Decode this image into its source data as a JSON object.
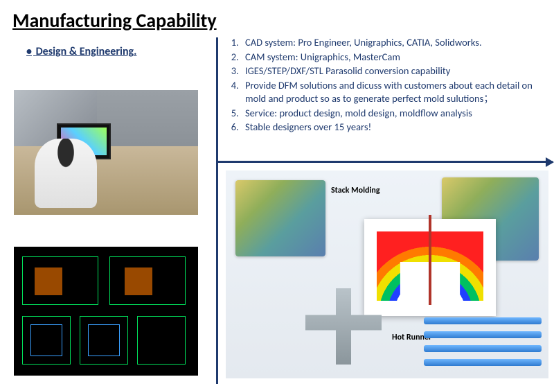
{
  "title": "Manufacturing Capability",
  "subtitle": "Design & Engineering",
  "subtitle_trailing": ".",
  "text_color": "#1f3a6e",
  "accent_line_color": "#1f3a6e",
  "capabilities": [
    "CAD system: Pro Engineer, Unigraphics, CATIA, Solidworks.",
    "CAM system: Unigraphics, MasterCam",
    "IGES/STEP/DXF/STL Parasolid conversion capability",
    "Provide DFM solutions and dicuss with customers about each detail on mold and product so as to generate perfect mold sulutions；",
    "Service: product design, mold design, moldflow analysis",
    "Stable designers over 15 years!"
  ],
  "gallery_labels": {
    "stack": "Stack Molding",
    "hot": "Hot Runner"
  },
  "images": {
    "office_alt": "Engineer working at CAD workstation in office cubicles",
    "cad_alt": "2D CAD mold drawings on black background",
    "gallery_alt": "3D mold renderings: stack molding, FEA thermal analysis, hot runner system"
  }
}
